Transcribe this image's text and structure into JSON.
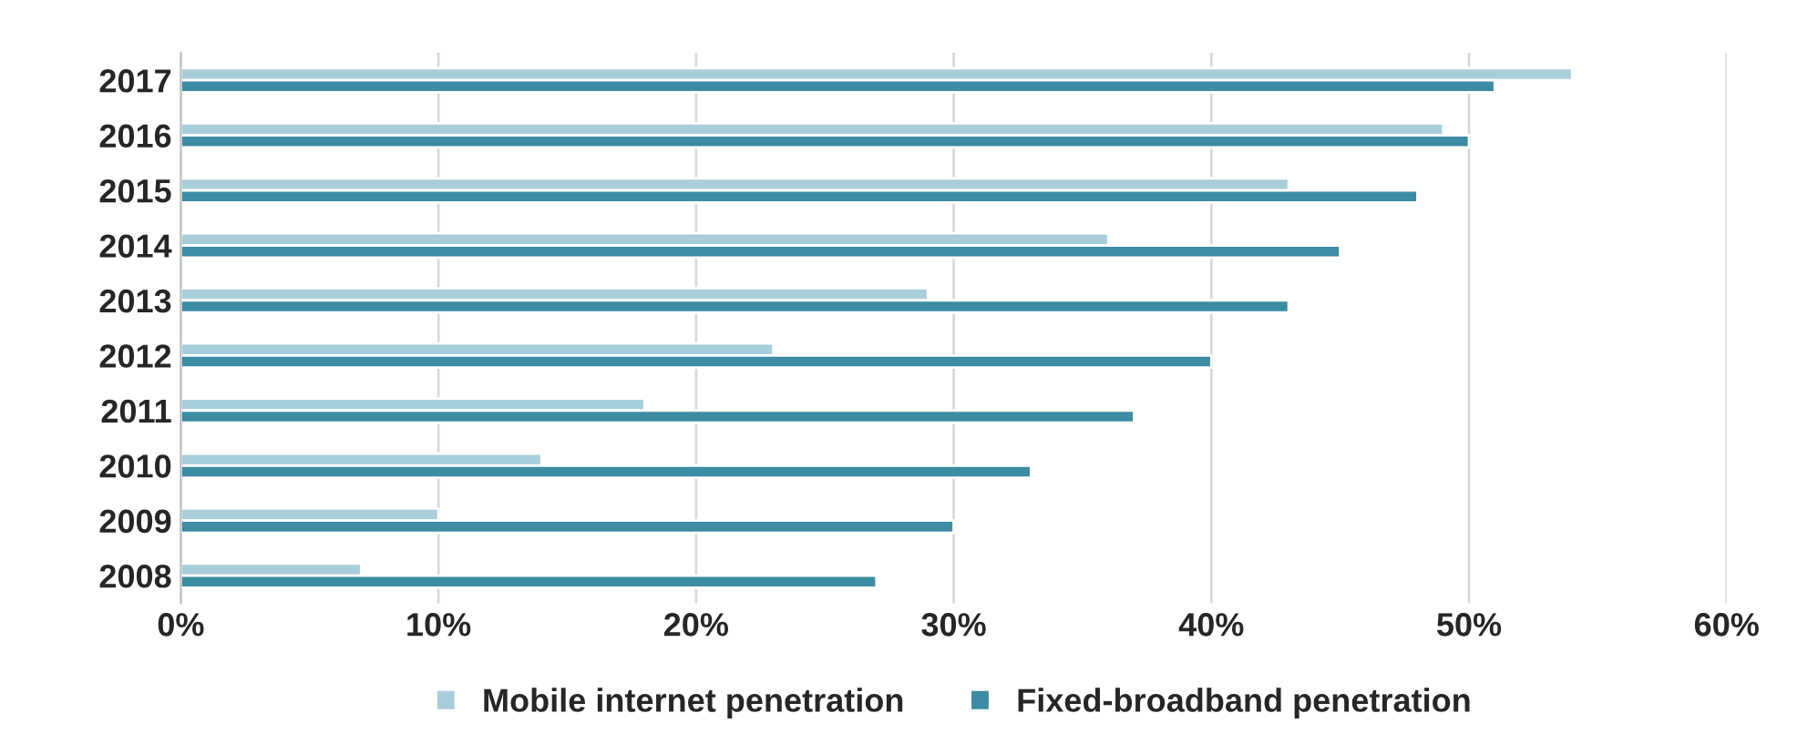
{
  "chart_data": {
    "type": "bar",
    "orientation": "horizontal",
    "categories": [
      "2017",
      "2016",
      "2015",
      "2014",
      "2013",
      "2012",
      "2011",
      "2010",
      "2009",
      "2008"
    ],
    "series": [
      {
        "name": "Mobile internet penetration",
        "color": "#a8cedb",
        "values": [
          54,
          49,
          43,
          36,
          29,
          23,
          18,
          14,
          10,
          7
        ]
      },
      {
        "name": "Fixed-broadband penetration",
        "color": "#3c8ca3",
        "values": [
          51,
          50,
          48,
          45,
          43,
          40,
          37,
          33,
          30,
          27
        ]
      }
    ],
    "xlim": [
      0,
      60
    ],
    "xticks": [
      {
        "value": 0,
        "label": "0%"
      },
      {
        "value": 10,
        "label": "10%"
      },
      {
        "value": 20,
        "label": "20%"
      },
      {
        "value": 30,
        "label": "30%"
      },
      {
        "value": 40,
        "label": "40%"
      },
      {
        "value": 50,
        "label": "50%"
      },
      {
        "value": 60,
        "label": "60%"
      }
    ],
    "grid": "x",
    "legend": "bottom"
  }
}
